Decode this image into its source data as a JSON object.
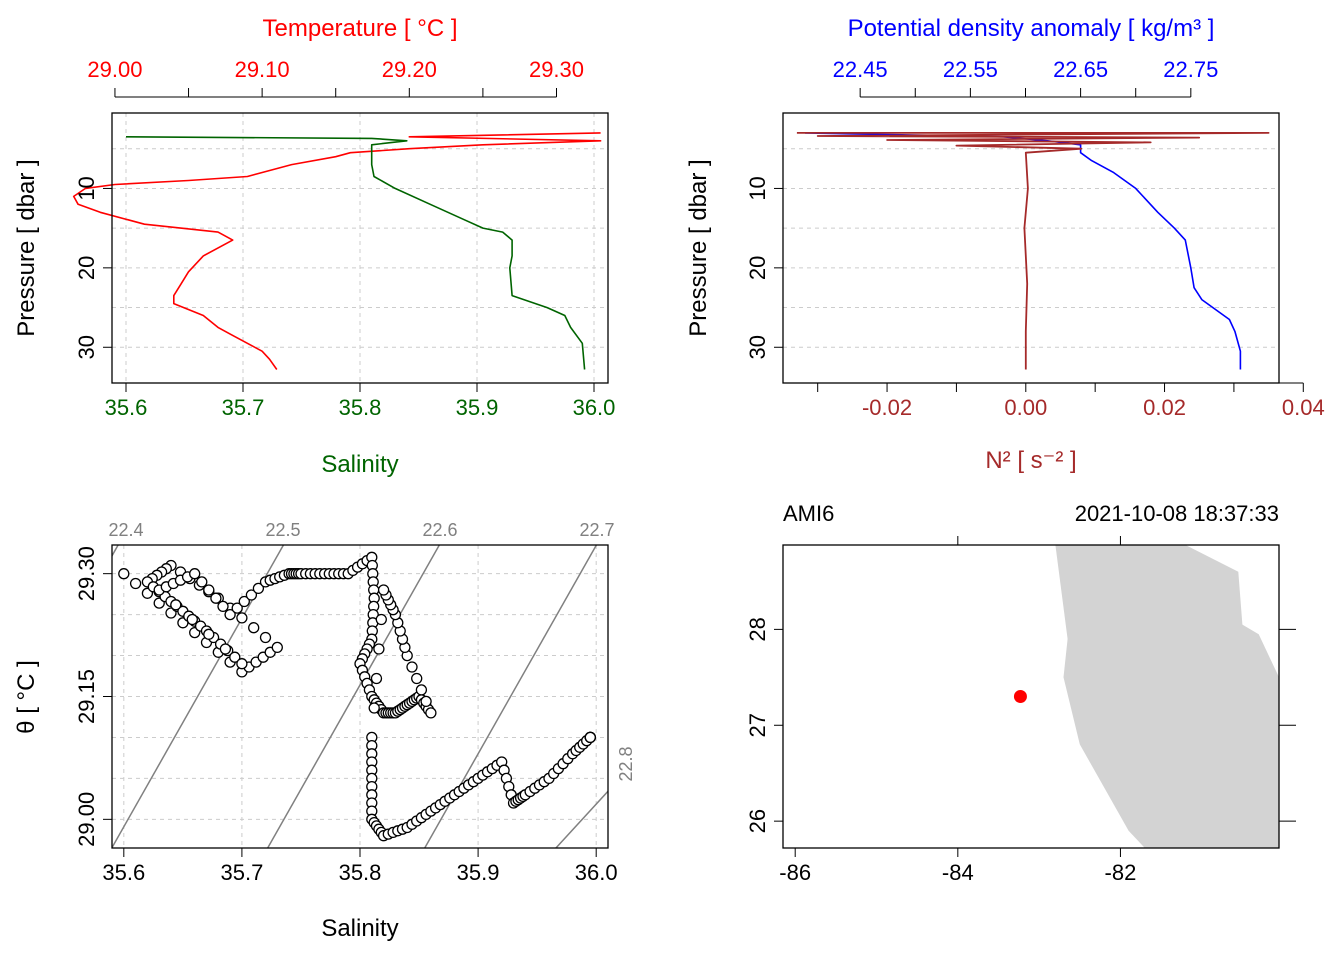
{
  "colors": {
    "temperature": "#ff0000",
    "salinity": "#006400",
    "density": "#0000ff",
    "n2": "#a52a2a",
    "grid": "#cccccc",
    "isopycnal": "#808080",
    "land": "#d3d3d3",
    "station": "#ff0000"
  },
  "chart_data": [
    {
      "type": "line",
      "panel": "temperature-salinity-profile",
      "top_axis_label": "Temperature [ °C ]",
      "bottom_axis_label": "Salinity",
      "ylabel": "Pressure [ dbar ]",
      "temperature_ticks": [
        "29.00",
        "29.10",
        "29.20",
        "29.30"
      ],
      "temperature_range": [
        28.998,
        29.335
      ],
      "salinity_ticks": [
        "35.6",
        "35.7",
        "35.8",
        "35.9",
        "36.0"
      ],
      "salinity_range": [
        35.6,
        36.0
      ],
      "pressure_ticks": [
        "10",
        "20",
        "30"
      ],
      "ylim": [
        34.5,
        0.5
      ],
      "grid": true,
      "series": [
        {
          "quantity": "temperature",
          "x": [
            29.33,
            29.2,
            29.33,
            29.25,
            29.2,
            29.16,
            29.15,
            29.12,
            29.09,
            29.05,
            29.0,
            28.98,
            28.972,
            28.975,
            28.99,
            29.02,
            29.07,
            29.08,
            29.06,
            29.05,
            29.045,
            29.04,
            29.04,
            29.06,
            29.07,
            29.08,
            29.09,
            29.1,
            29.105,
            29.11
          ],
          "y": [
            3.0,
            3.5,
            4.0,
            4.5,
            5.0,
            5.5,
            6.0,
            7.0,
            8.5,
            9.0,
            9.5,
            10.0,
            11.0,
            12.0,
            13.0,
            14.5,
            15.5,
            16.5,
            18.5,
            20.5,
            22.0,
            23.5,
            24.5,
            26.0,
            27.5,
            28.5,
            29.5,
            30.5,
            31.5,
            32.8
          ]
        },
        {
          "quantity": "salinity",
          "x": [
            35.6,
            35.81,
            35.84,
            35.81,
            35.81,
            35.81,
            35.812,
            35.83,
            35.86,
            35.89,
            35.905,
            35.922,
            35.93,
            35.93,
            35.928,
            35.93,
            35.96,
            35.975,
            35.98,
            35.99,
            35.992
          ],
          "y": [
            3.5,
            3.7,
            4.0,
            4.5,
            5.5,
            7.0,
            8.5,
            10.0,
            12.0,
            14.0,
            15.0,
            15.5,
            16.5,
            18.5,
            20.0,
            23.5,
            25.0,
            26.0,
            27.5,
            29.5,
            32.8
          ]
        }
      ]
    },
    {
      "type": "line",
      "panel": "density-n2-profile",
      "top_axis_label": "Potential density anomaly [ kg/m³ ]",
      "bottom_axis_label": "N² [ s⁻² ]",
      "ylabel": "Pressure [ dbar ]",
      "density_ticks": [
        "22.45",
        "22.55",
        "22.65",
        "22.75"
      ],
      "density_range": [
        22.38,
        22.83
      ],
      "n2_ticks": [
        "-0.02",
        "0.00",
        "0.02",
        "0.04"
      ],
      "n2_range": [
        -0.035,
        0.0365
      ],
      "pressure_ticks": [
        "10",
        "20",
        "30"
      ],
      "ylim": [
        34.5,
        0.5
      ],
      "grid": true,
      "series": [
        {
          "quantity": "density",
          "x": [
            22.4,
            22.58,
            22.62,
            22.65,
            22.65,
            22.66,
            22.68,
            22.7,
            22.72,
            22.735,
            22.745,
            22.75,
            22.753,
            22.76,
            22.77,
            22.785,
            22.79,
            22.795,
            22.795
          ],
          "y": [
            3.0,
            3.5,
            4.0,
            4.5,
            5.5,
            6.5,
            8.0,
            10.0,
            13.0,
            15.0,
            16.5,
            20.0,
            22.5,
            24.0,
            25.0,
            26.5,
            28.0,
            30.5,
            32.8
          ]
        },
        {
          "quantity": "n2",
          "x": [
            -0.033,
            0.035,
            -0.03,
            0.025,
            -0.02,
            0.018,
            -0.01,
            0.008,
            0.0,
            0.0003,
            -0.0002,
            0.0002,
            0.0,
            0.0
          ],
          "y": [
            3.0,
            3.0,
            3.4,
            3.6,
            3.9,
            4.2,
            4.6,
            5.0,
            5.5,
            10.0,
            15.0,
            22.0,
            28.0,
            32.8
          ]
        }
      ]
    },
    {
      "type": "scatter",
      "panel": "ts-diagram",
      "xlabel": "Salinity",
      "ylabel": "θ [ °C ]",
      "xticks": [
        "35.6",
        "35.7",
        "35.8",
        "35.9",
        "36.0"
      ],
      "xlim": [
        35.59,
        36.01
      ],
      "yticks": [
        "29.00",
        "29.15",
        "29.30"
      ],
      "ylim": [
        28.965,
        29.335
      ],
      "grid": true,
      "isopycnal_labels": [
        "22.4",
        "22.5",
        "22.6",
        "22.7",
        "22.8"
      ],
      "points": {
        "x": [
          35.6,
          35.65,
          35.7,
          35.73,
          35.68,
          35.64,
          35.62,
          35.645,
          35.67,
          35.7,
          35.63,
          35.66,
          35.69,
          35.72,
          35.74,
          35.75,
          35.77,
          35.79,
          35.81,
          35.812,
          35.81,
          35.8,
          35.81,
          35.82,
          35.83,
          35.84,
          35.85,
          35.86,
          35.84,
          35.83,
          35.82,
          35.81,
          35.81,
          35.81,
          35.82,
          35.84,
          35.86,
          35.88,
          35.9,
          35.92,
          35.93,
          35.94,
          35.96,
          35.98,
          35.995
        ],
        "y": [
          29.3,
          29.24,
          29.18,
          29.21,
          29.27,
          29.31,
          29.29,
          29.26,
          29.23,
          29.19,
          29.28,
          29.3,
          29.25,
          29.29,
          29.3,
          29.3,
          29.3,
          29.3,
          29.32,
          29.27,
          29.22,
          29.19,
          29.15,
          29.13,
          29.13,
          29.14,
          29.15,
          29.13,
          29.2,
          29.25,
          29.28,
          29.1,
          29.05,
          29.0,
          28.98,
          28.99,
          29.01,
          29.03,
          29.05,
          29.07,
          29.02,
          29.03,
          29.05,
          29.08,
          29.1
        ]
      }
    },
    {
      "type": "map",
      "panel": "station-map",
      "station_name": "AMI6",
      "datetime": "2021-10-08 18:37:33",
      "xticks": [
        "-86",
        "-84",
        "-82"
      ],
      "xlim": [
        -86.15,
        -80.05
      ],
      "yticks": [
        "26",
        "27",
        "28"
      ],
      "ylim": [
        25.72,
        28.88
      ],
      "station": {
        "lon": -83.23,
        "lat": 27.3
      },
      "land": {
        "lon": [
          -82.8,
          -81.2,
          -80.55,
          -80.5,
          -80.3,
          -80.05,
          -80.05,
          -81.7,
          -81.9,
          -82.5,
          -82.7,
          -82.65
        ],
        "lat": [
          28.88,
          28.88,
          28.6,
          28.05,
          27.95,
          27.5,
          25.72,
          25.72,
          25.9,
          26.8,
          27.5,
          27.9
        ]
      }
    }
  ]
}
